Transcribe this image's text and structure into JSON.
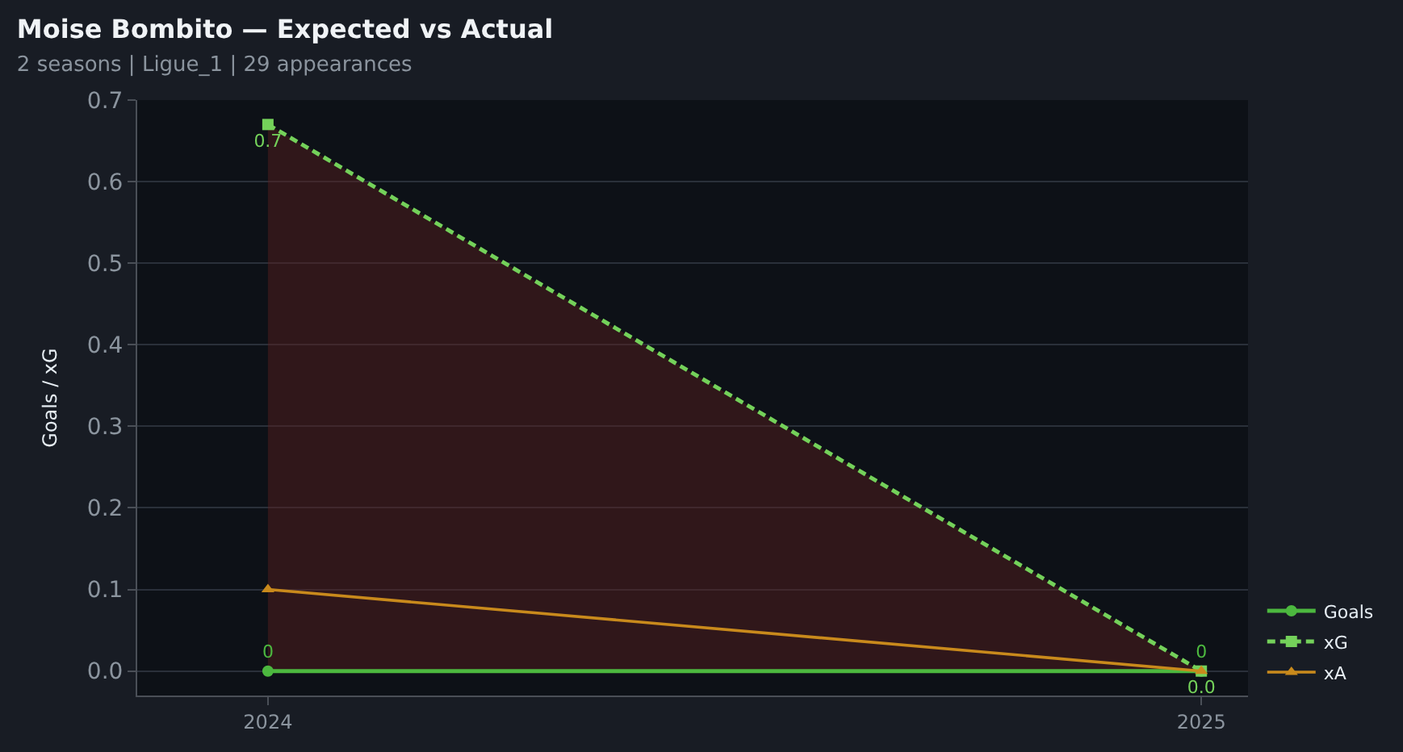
{
  "chart_data": {
    "type": "line",
    "title": "Moise Bombito — Expected vs Actual",
    "subtitle": "2 seasons | Ligue_1 | 29 appearances",
    "ylabel": "Goals / xG",
    "x": [
      2024,
      2025
    ],
    "xlim": [
      2023.86,
      2025.05
    ],
    "xticks": [
      2024,
      2025
    ],
    "series": [
      {
        "name": "Goals",
        "color": "#4cb83f",
        "values": [
          0,
          0
        ],
        "marker": "circle",
        "line_style": "solid",
        "value_labels": [
          "0",
          "0"
        ]
      },
      {
        "name": "xG",
        "color": "#74d15a",
        "values": [
          0.67,
          0.0
        ],
        "marker": "square",
        "line_style": "dashed",
        "value_labels": [
          "0.7",
          "0.0"
        ],
        "lower": [
          0,
          0
        ],
        "upper": [
          0.67,
          0.0
        ]
      },
      {
        "name": "xA",
        "color": "#c98a1c",
        "values": [
          0.1,
          0.0
        ],
        "marker": "triangle",
        "line_style": "solid"
      }
    ],
    "ylim": [
      -0.03,
      0.7
    ],
    "yticks": [
      {
        "value": 0,
        "label": "0.0"
      },
      0.1,
      0.2,
      0.3,
      0.4,
      0.5,
      0.6,
      0.7
    ],
    "grid": "y",
    "legend": "bottom right"
  }
}
